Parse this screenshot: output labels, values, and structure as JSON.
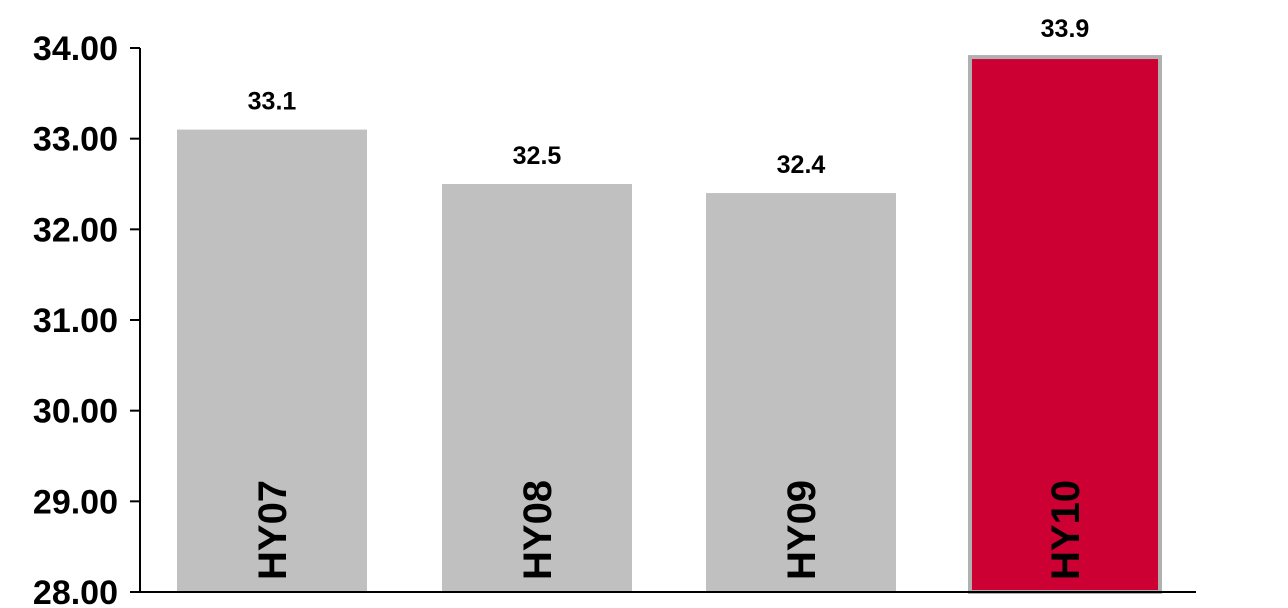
{
  "chart_data": {
    "type": "bar",
    "categories": [
      "HY07",
      "HY08",
      "HY09",
      "HY10"
    ],
    "values": [
      33.1,
      32.5,
      32.4,
      33.9
    ],
    "data_labels": [
      "33.1",
      "32.5",
      "32.4",
      "33.9"
    ],
    "title": "",
    "xlabel": "",
    "ylabel": "",
    "ylim": [
      28,
      34
    ],
    "yticks": [
      "28.00",
      "29.00",
      "30.00",
      "31.00",
      "32.00",
      "33.00",
      "34.00"
    ],
    "grid": false,
    "legend": "none",
    "category_label_placement": "inside-bar-vertical",
    "colors": {
      "default_bar": "#c0c0c0",
      "highlight_bar": "#cc0033",
      "highlight_border": "#b0b0b0",
      "axis": "#000000",
      "text": "#000000"
    },
    "highlight_index": 3
  }
}
